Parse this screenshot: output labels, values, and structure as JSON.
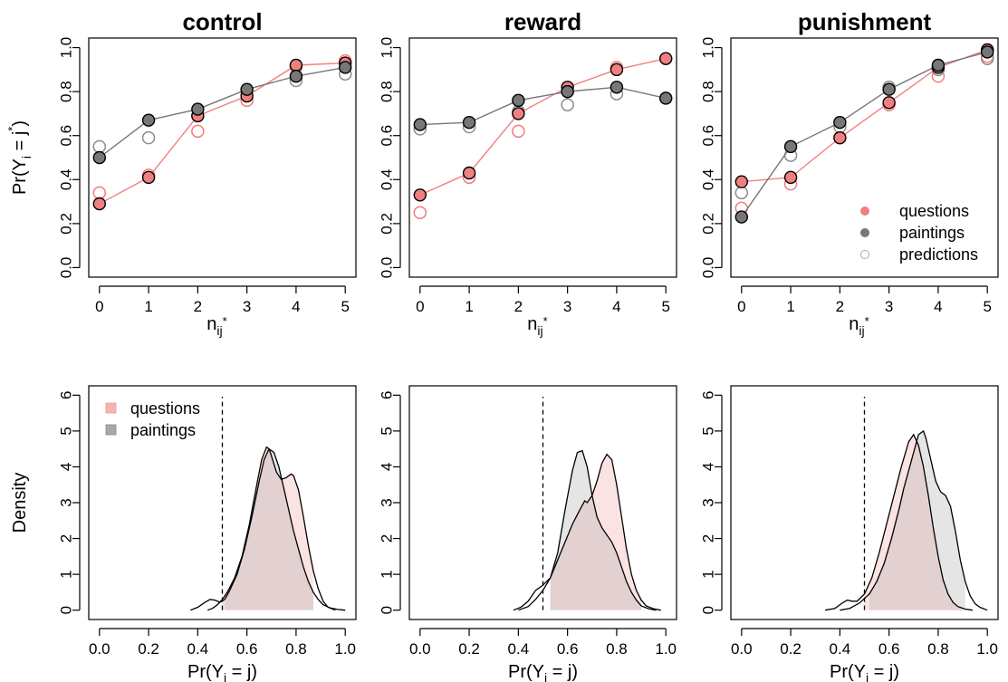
{
  "colors": {
    "questions": "#f08080",
    "paintings": "#777777",
    "prediction_questions": "#f47a7a",
    "prediction_paintings": "#8c8c8c"
  },
  "labels": {
    "row1_x": {
      "main": "n",
      "sub": "ij",
      "sup": "*"
    },
    "row1_y": {
      "pre": "Pr(Y",
      "sub": "i",
      "mid": " = j",
      "sup": "*",
      "post": ")"
    },
    "row2_x": {
      "pre": "Pr(Y",
      "sub": "i",
      "post": " = j)"
    },
    "row2_y": "Density"
  },
  "chart_data": [
    {
      "type": "line",
      "title": "control",
      "x": [
        0,
        1,
        2,
        3,
        4,
        5
      ],
      "xlim": [
        0,
        5
      ],
      "ylim": [
        0,
        1
      ],
      "series": [
        {
          "name": "questions",
          "values": [
            0.29,
            0.41,
            0.69,
            0.78,
            0.92,
            0.93
          ]
        },
        {
          "name": "paintings",
          "values": [
            0.5,
            0.67,
            0.72,
            0.81,
            0.87,
            0.91
          ]
        }
      ],
      "predictions": [
        {
          "of": "questions",
          "values": [
            0.34,
            0.42,
            0.62,
            0.76,
            0.91,
            0.94
          ]
        },
        {
          "of": "paintings",
          "values": [
            0.55,
            0.59,
            0.69,
            0.8,
            0.85,
            0.88
          ]
        }
      ]
    },
    {
      "type": "line",
      "title": "reward",
      "x": [
        0,
        1,
        2,
        3,
        4,
        5
      ],
      "xlim": [
        0,
        5
      ],
      "ylim": [
        0,
        1
      ],
      "series": [
        {
          "name": "questions",
          "values": [
            0.33,
            0.43,
            0.7,
            0.82,
            0.9,
            0.95
          ]
        },
        {
          "name": "paintings",
          "values": [
            0.65,
            0.66,
            0.76,
            0.8,
            0.82,
            0.77
          ]
        }
      ],
      "predictions": [
        {
          "of": "questions",
          "values": [
            0.25,
            0.41,
            0.62,
            0.8,
            0.91,
            0.95
          ]
        },
        {
          "of": "paintings",
          "values": [
            0.63,
            0.64,
            0.71,
            0.74,
            0.79,
            0.77
          ]
        }
      ]
    },
    {
      "type": "line",
      "title": "punishment",
      "x": [
        0,
        1,
        2,
        3,
        4,
        5
      ],
      "xlim": [
        0,
        5
      ],
      "ylim": [
        0,
        1
      ],
      "legend": {
        "position": "bottom-right",
        "entries": [
          "questions",
          "paintings",
          "predictions"
        ]
      },
      "series": [
        {
          "name": "questions",
          "values": [
            0.39,
            0.41,
            0.59,
            0.75,
            0.91,
            0.99
          ]
        },
        {
          "name": "paintings",
          "values": [
            0.23,
            0.55,
            0.66,
            0.81,
            0.92,
            0.98
          ]
        }
      ],
      "predictions": [
        {
          "of": "questions",
          "values": [
            0.27,
            0.38,
            0.59,
            0.74,
            0.87,
            0.96
          ]
        },
        {
          "of": "paintings",
          "values": [
            0.34,
            0.51,
            0.64,
            0.82,
            0.9,
            0.95
          ]
        }
      ]
    },
    {
      "type": "area",
      "title": "",
      "xlim": [
        0,
        1
      ],
      "ylim": [
        0,
        6
      ],
      "reference_line_x": 0.5,
      "legend": {
        "position": "top-left",
        "entries": [
          "questions",
          "paintings"
        ]
      },
      "series": [
        {
          "name": "questions",
          "x": [
            0.44,
            0.46,
            0.48,
            0.5,
            0.52,
            0.55,
            0.58,
            0.61,
            0.64,
            0.66,
            0.68,
            0.69,
            0.7,
            0.72,
            0.74,
            0.76,
            0.78,
            0.79,
            0.81,
            0.83,
            0.85,
            0.87,
            0.89,
            0.91,
            0.93,
            0.96
          ],
          "values": [
            0,
            0.05,
            0.15,
            0.3,
            0.5,
            0.9,
            1.5,
            2.4,
            3.5,
            4.2,
            4.55,
            4.5,
            4.3,
            3.85,
            3.65,
            3.7,
            3.8,
            3.75,
            3.35,
            2.6,
            1.8,
            1.1,
            0.6,
            0.25,
            0.08,
            0
          ]
        },
        {
          "name": "paintings",
          "x": [
            0.37,
            0.4,
            0.43,
            0.45,
            0.47,
            0.49,
            0.51,
            0.53,
            0.56,
            0.59,
            0.62,
            0.65,
            0.67,
            0.69,
            0.71,
            0.73,
            0.75,
            0.77,
            0.79,
            0.81,
            0.83,
            0.85,
            0.87,
            0.89,
            0.91,
            0.94,
            0.97,
            1.0
          ],
          "values": [
            0,
            0.08,
            0.22,
            0.3,
            0.28,
            0.22,
            0.3,
            0.55,
            1.0,
            1.7,
            2.6,
            3.6,
            4.2,
            4.5,
            4.4,
            4.0,
            3.4,
            2.8,
            2.2,
            1.7,
            1.2,
            0.8,
            0.5,
            0.3,
            0.15,
            0.06,
            0.02,
            0
          ]
        }
      ]
    },
    {
      "type": "area",
      "title": "",
      "xlim": [
        0,
        1
      ],
      "ylim": [
        0,
        6
      ],
      "reference_line_x": 0.5,
      "series": [
        {
          "name": "questions",
          "x": [
            0.4,
            0.44,
            0.47,
            0.5,
            0.53,
            0.56,
            0.59,
            0.62,
            0.65,
            0.67,
            0.68,
            0.7,
            0.72,
            0.74,
            0.76,
            0.78,
            0.8,
            0.82,
            0.84,
            0.86,
            0.88,
            0.9,
            0.92,
            0.95,
            0.98
          ],
          "values": [
            0,
            0.1,
            0.3,
            0.55,
            0.9,
            1.4,
            1.9,
            2.4,
            2.8,
            3.05,
            3.0,
            3.2,
            3.6,
            4.1,
            4.35,
            4.2,
            3.5,
            2.6,
            1.7,
            1.0,
            0.55,
            0.28,
            0.12,
            0.04,
            0
          ]
        },
        {
          "name": "paintings",
          "x": [
            0.38,
            0.41,
            0.44,
            0.47,
            0.5,
            0.53,
            0.56,
            0.59,
            0.62,
            0.64,
            0.66,
            0.68,
            0.7,
            0.72,
            0.74,
            0.76,
            0.78,
            0.8,
            0.82,
            0.84,
            0.86,
            0.88,
            0.9,
            0.93,
            0.96
          ],
          "values": [
            0,
            0.08,
            0.25,
            0.55,
            0.7,
            0.9,
            1.6,
            2.8,
            3.9,
            4.4,
            4.45,
            4.0,
            3.2,
            2.6,
            2.3,
            2.1,
            1.9,
            1.6,
            1.2,
            0.8,
            0.5,
            0.28,
            0.12,
            0.04,
            0
          ]
        }
      ]
    },
    {
      "type": "area",
      "title": "",
      "xlim": [
        0,
        1
      ],
      "ylim": [
        0,
        6
      ],
      "reference_line_x": 0.5,
      "series": [
        {
          "name": "questions",
          "x": [
            0.34,
            0.38,
            0.41,
            0.43,
            0.45,
            0.47,
            0.5,
            0.53,
            0.56,
            0.59,
            0.62,
            0.65,
            0.68,
            0.7,
            0.72,
            0.74,
            0.76,
            0.78,
            0.8,
            0.82,
            0.84,
            0.86,
            0.88,
            0.91,
            0.94
          ],
          "values": [
            0,
            0.05,
            0.2,
            0.28,
            0.25,
            0.25,
            0.45,
            0.9,
            1.6,
            2.4,
            3.2,
            4.0,
            4.7,
            4.9,
            4.6,
            4.0,
            3.2,
            2.3,
            1.5,
            0.85,
            0.45,
            0.22,
            0.1,
            0.03,
            0
          ]
        },
        {
          "name": "paintings",
          "x": [
            0.4,
            0.44,
            0.48,
            0.52,
            0.55,
            0.58,
            0.61,
            0.64,
            0.66,
            0.68,
            0.7,
            0.72,
            0.74,
            0.75,
            0.77,
            0.79,
            0.81,
            0.83,
            0.85,
            0.87,
            0.89,
            0.91,
            0.93,
            0.95,
            0.97,
            1.0
          ],
          "values": [
            0,
            0.05,
            0.2,
            0.45,
            0.8,
            1.3,
            2.0,
            2.8,
            3.4,
            3.9,
            4.4,
            4.9,
            5.0,
            4.8,
            4.2,
            3.6,
            3.3,
            3.2,
            2.9,
            2.2,
            1.4,
            0.8,
            0.4,
            0.18,
            0.08,
            0
          ]
        }
      ]
    }
  ]
}
